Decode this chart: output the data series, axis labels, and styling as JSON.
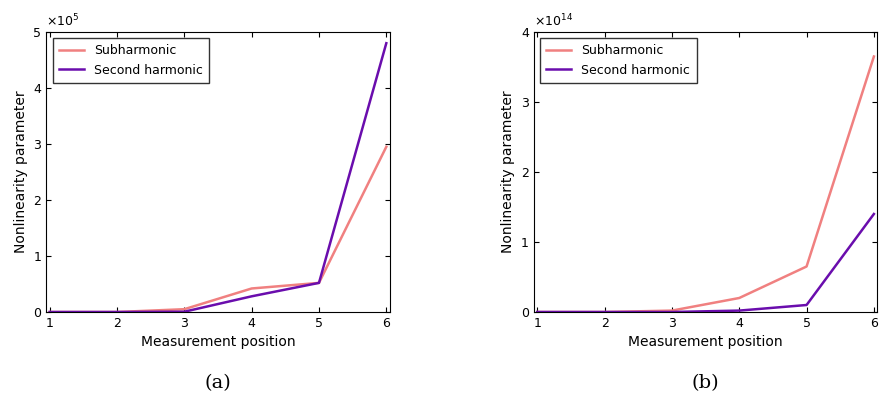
{
  "x": [
    1,
    2,
    3,
    4,
    5,
    6
  ],
  "plot_a": {
    "subharmonic": [
      0,
      0,
      5000,
      42000,
      52000,
      295000
    ],
    "second_harmonic": [
      0,
      0,
      500,
      28000,
      52000,
      480000
    ],
    "ylim": [
      0,
      500000
    ],
    "yticks": [
      0,
      100000,
      200000,
      300000,
      400000,
      500000
    ],
    "scale": 100000.0,
    "ylabel": "Nonlinearity parameter",
    "xlabel": "Measurement position",
    "label": "(a)"
  },
  "plot_b": {
    "subharmonic": [
      0,
      0,
      2000000000000.0,
      20000000000000.0,
      65000000000000.0,
      365000000000000.0
    ],
    "second_harmonic": [
      0,
      0,
      0,
      2000000000000.0,
      10000000000000.0,
      140000000000000.0
    ],
    "ylim": [
      0,
      400000000000000.0
    ],
    "yticks": [
      0,
      100000000000000.0,
      200000000000000.0,
      300000000000000.0,
      400000000000000.0
    ],
    "scale": 100000000000000.0,
    "ylabel": "Nonlinearity parameter",
    "xlabel": "Measurement position",
    "label": "(b)"
  },
  "subharmonic_color": "#F08080",
  "second_harmonic_color": "#6A0DAD",
  "subharmonic_label": "Subharmonic",
  "second_harmonic_label": "Second harmonic",
  "line_width": 1.8,
  "xlim": [
    1,
    6
  ],
  "xticks": [
    1,
    2,
    3,
    4,
    5,
    6
  ],
  "background_color": "#ffffff",
  "caption_fontsize": 14
}
